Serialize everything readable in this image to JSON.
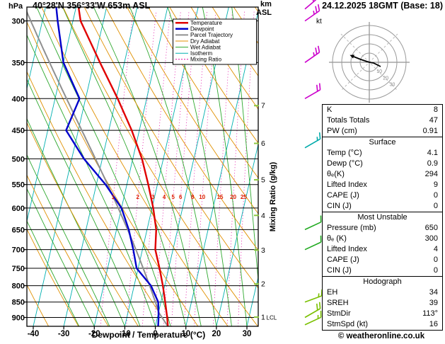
{
  "header": {
    "station": "40°28'N 356°33'W 653m ASL",
    "datetime": "24.12.2025 18GMT (Base: 18)"
  },
  "axes": {
    "left_unit": "hPa",
    "right_unit_top": "km",
    "right_unit_bottom": "ASL",
    "bottom_label": "Dewpoint / Temperature (°C)",
    "right_label": "Mixing Ratio (g/kg)",
    "pressure_ticks": [
      300,
      350,
      400,
      450,
      500,
      550,
      600,
      650,
      700,
      750,
      800,
      850,
      900
    ],
    "temp_ticks": [
      -40,
      -30,
      -20,
      -10,
      0,
      10,
      20,
      30
    ],
    "km_ticks": [
      7,
      6,
      5,
      4,
      3,
      2,
      1
    ],
    "lcl_label": "LCL"
  },
  "legend": [
    {
      "label": "Temperature",
      "color": "#e00000",
      "width": 2.5,
      "dash": ""
    },
    {
      "label": "Dewpoint",
      "color": "#0000cc",
      "width": 2.5,
      "dash": ""
    },
    {
      "label": "Parcel Trajectory",
      "color": "#909090",
      "width": 2,
      "dash": ""
    },
    {
      "label": "Dry Adiabat",
      "color": "#e09000",
      "width": 1,
      "dash": ""
    },
    {
      "label": "Wet Adiabat",
      "color": "#2ea82e",
      "width": 1,
      "dash": ""
    },
    {
      "label": "Isotherm",
      "color": "#00b0b0",
      "width": 1,
      "dash": ""
    },
    {
      "label": "Mixing Ratio",
      "color": "#e000a0",
      "width": 1,
      "dash": "2 2"
    }
  ],
  "colors": {
    "mixing_labels": "#dd2200",
    "km_ticks": "#8cc63f",
    "grid": "#000000"
  },
  "chart_data": {
    "type": "skewt-log-p sounding",
    "pressure_range_hPa": [
      285,
      930
    ],
    "temp_axis_range_C": [
      -40,
      40
    ],
    "mixing_ratio_lines_gkg": [
      1,
      2,
      3,
      4,
      5,
      6,
      8,
      10,
      15,
      20,
      25
    ],
    "temperature_profile_p_T": [
      [
        930,
        4.1
      ],
      [
        900,
        3.2
      ],
      [
        850,
        1.4
      ],
      [
        800,
        -0.6
      ],
      [
        750,
        -3.0
      ],
      [
        700,
        -5.8
      ],
      [
        650,
        -7.0
      ],
      [
        600,
        -9.6
      ],
      [
        550,
        -13.0
      ],
      [
        500,
        -17.0
      ],
      [
        450,
        -22.5
      ],
      [
        400,
        -29.5
      ],
      [
        350,
        -38.0
      ],
      [
        300,
        -47.5
      ],
      [
        285,
        -49.2
      ]
    ],
    "dewpoint_profile_p_Td": [
      [
        930,
        0.9
      ],
      [
        900,
        0.4
      ],
      [
        850,
        -0.9
      ],
      [
        800,
        -4.5
      ],
      [
        750,
        -10.5
      ],
      [
        700,
        -13.0
      ],
      [
        650,
        -16.0
      ],
      [
        600,
        -20.0
      ],
      [
        550,
        -27.0
      ],
      [
        500,
        -36.0
      ],
      [
        450,
        -44.0
      ],
      [
        400,
        -42.0
      ],
      [
        350,
        -50.0
      ],
      [
        300,
        -55.0
      ],
      [
        285,
        -56.5
      ]
    ],
    "surface_parcel": {
      "pressure": 930,
      "temp": 4.1,
      "dewpoint": 0.9
    },
    "wind_barbs": [
      {
        "p": 287,
        "kt": 30,
        "dir": 50,
        "color": "#cc00cc"
      },
      {
        "p": 300,
        "kt": 25,
        "dir": 55,
        "color": "#cc00cc"
      },
      {
        "p": 350,
        "kt": 25,
        "dir": 55,
        "color": "#cc00cc"
      },
      {
        "p": 400,
        "kt": 20,
        "dir": 60,
        "color": "#cc00cc"
      },
      {
        "p": 480,
        "kt": 15,
        "dir": 60,
        "color": "#00aaaa"
      },
      {
        "p": 650,
        "kt": 10,
        "dir": 65,
        "color": "#22aa22"
      },
      {
        "p": 700,
        "kt": 10,
        "dir": 65,
        "color": "#22aa22"
      },
      {
        "p": 850,
        "kt": 15,
        "dir": 70,
        "color": "#7ac000"
      },
      {
        "p": 900,
        "kt": 20,
        "dir": 60,
        "color": "#7ac000"
      },
      {
        "p": 925,
        "kt": 15,
        "dir": 65,
        "color": "#7ac000"
      }
    ]
  },
  "hodograph": {
    "unit": "kt",
    "rings_kt": [
      10,
      20,
      30,
      40
    ],
    "ring_labels": [
      "10",
      "20",
      "30"
    ]
  },
  "table": {
    "top_rows": [
      [
        "K",
        "8"
      ],
      [
        "Totals Totals",
        "47"
      ],
      [
        "PW (cm)",
        "0.91"
      ]
    ],
    "sections": [
      {
        "title": "Surface",
        "rows": [
          [
            "Temp (°C)",
            "4.1"
          ],
          [
            "Dewp (°C)",
            "0.9"
          ],
          [
            "θₑ(K)",
            "294"
          ],
          [
            "Lifted Index",
            "9"
          ],
          [
            "CAPE (J)",
            "0"
          ],
          [
            "CIN (J)",
            "0"
          ]
        ]
      },
      {
        "title": "Most Unstable",
        "rows": [
          [
            "Pressure (mb)",
            "650"
          ],
          [
            "θₑ (K)",
            "300"
          ],
          [
            "Lifted Index",
            "4"
          ],
          [
            "CAPE (J)",
            "0"
          ],
          [
            "CIN (J)",
            "0"
          ]
        ]
      },
      {
        "title": "Hodograph",
        "rows": [
          [
            "EH",
            "34"
          ],
          [
            "SREH",
            "39"
          ],
          [
            "StmDir",
            "113°"
          ],
          [
            "StmSpd (kt)",
            "16"
          ]
        ]
      }
    ]
  },
  "footer": {
    "credit": "© weatheronline.co.uk"
  }
}
